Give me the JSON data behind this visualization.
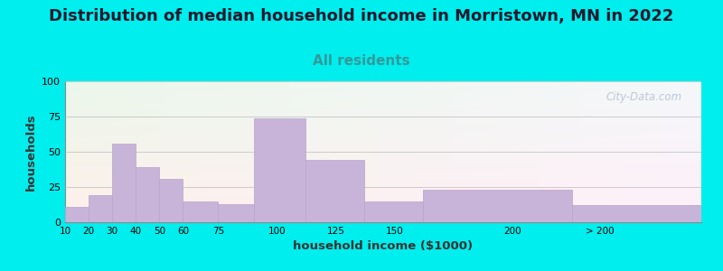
{
  "title": "Distribution of median household income in Morristown, MN in 2022",
  "subtitle": "All residents",
  "xlabel": "household income ($1000)",
  "ylabel": "households",
  "title_fontsize": 13,
  "subtitle_fontsize": 11,
  "subtitle_color": "#339999",
  "bar_color": "#c8b4d8",
  "bar_edge_color": "#b8a4c8",
  "background_color": "#00eeee",
  "plot_bg_green": "#e8f5e8",
  "plot_bg_white": "#f8f8ff",
  "ylim": [
    0,
    100
  ],
  "yticks": [
    0,
    25,
    50,
    75,
    100
  ],
  "watermark": "City-Data.com",
  "bar_lefts": [
    10,
    20,
    30,
    40,
    50,
    60,
    75,
    90,
    112,
    137,
    162,
    225
  ],
  "bar_rights": [
    20,
    30,
    40,
    50,
    60,
    75,
    90,
    112,
    137,
    162,
    225,
    280
  ],
  "bar_heights": [
    11,
    19,
    56,
    39,
    31,
    15,
    13,
    74,
    44,
    15,
    23,
    12
  ],
  "xtick_vals": [
    10,
    20,
    30,
    40,
    50,
    60,
    75,
    100,
    125,
    150,
    200
  ],
  "xtick_labels": [
    "10",
    "20",
    "30",
    "40",
    "50",
    "60",
    "75",
    "100",
    "125",
    "150",
    "200"
  ],
  "extra_xtick_val": 237,
  "extra_xtick_label": "> 200"
}
